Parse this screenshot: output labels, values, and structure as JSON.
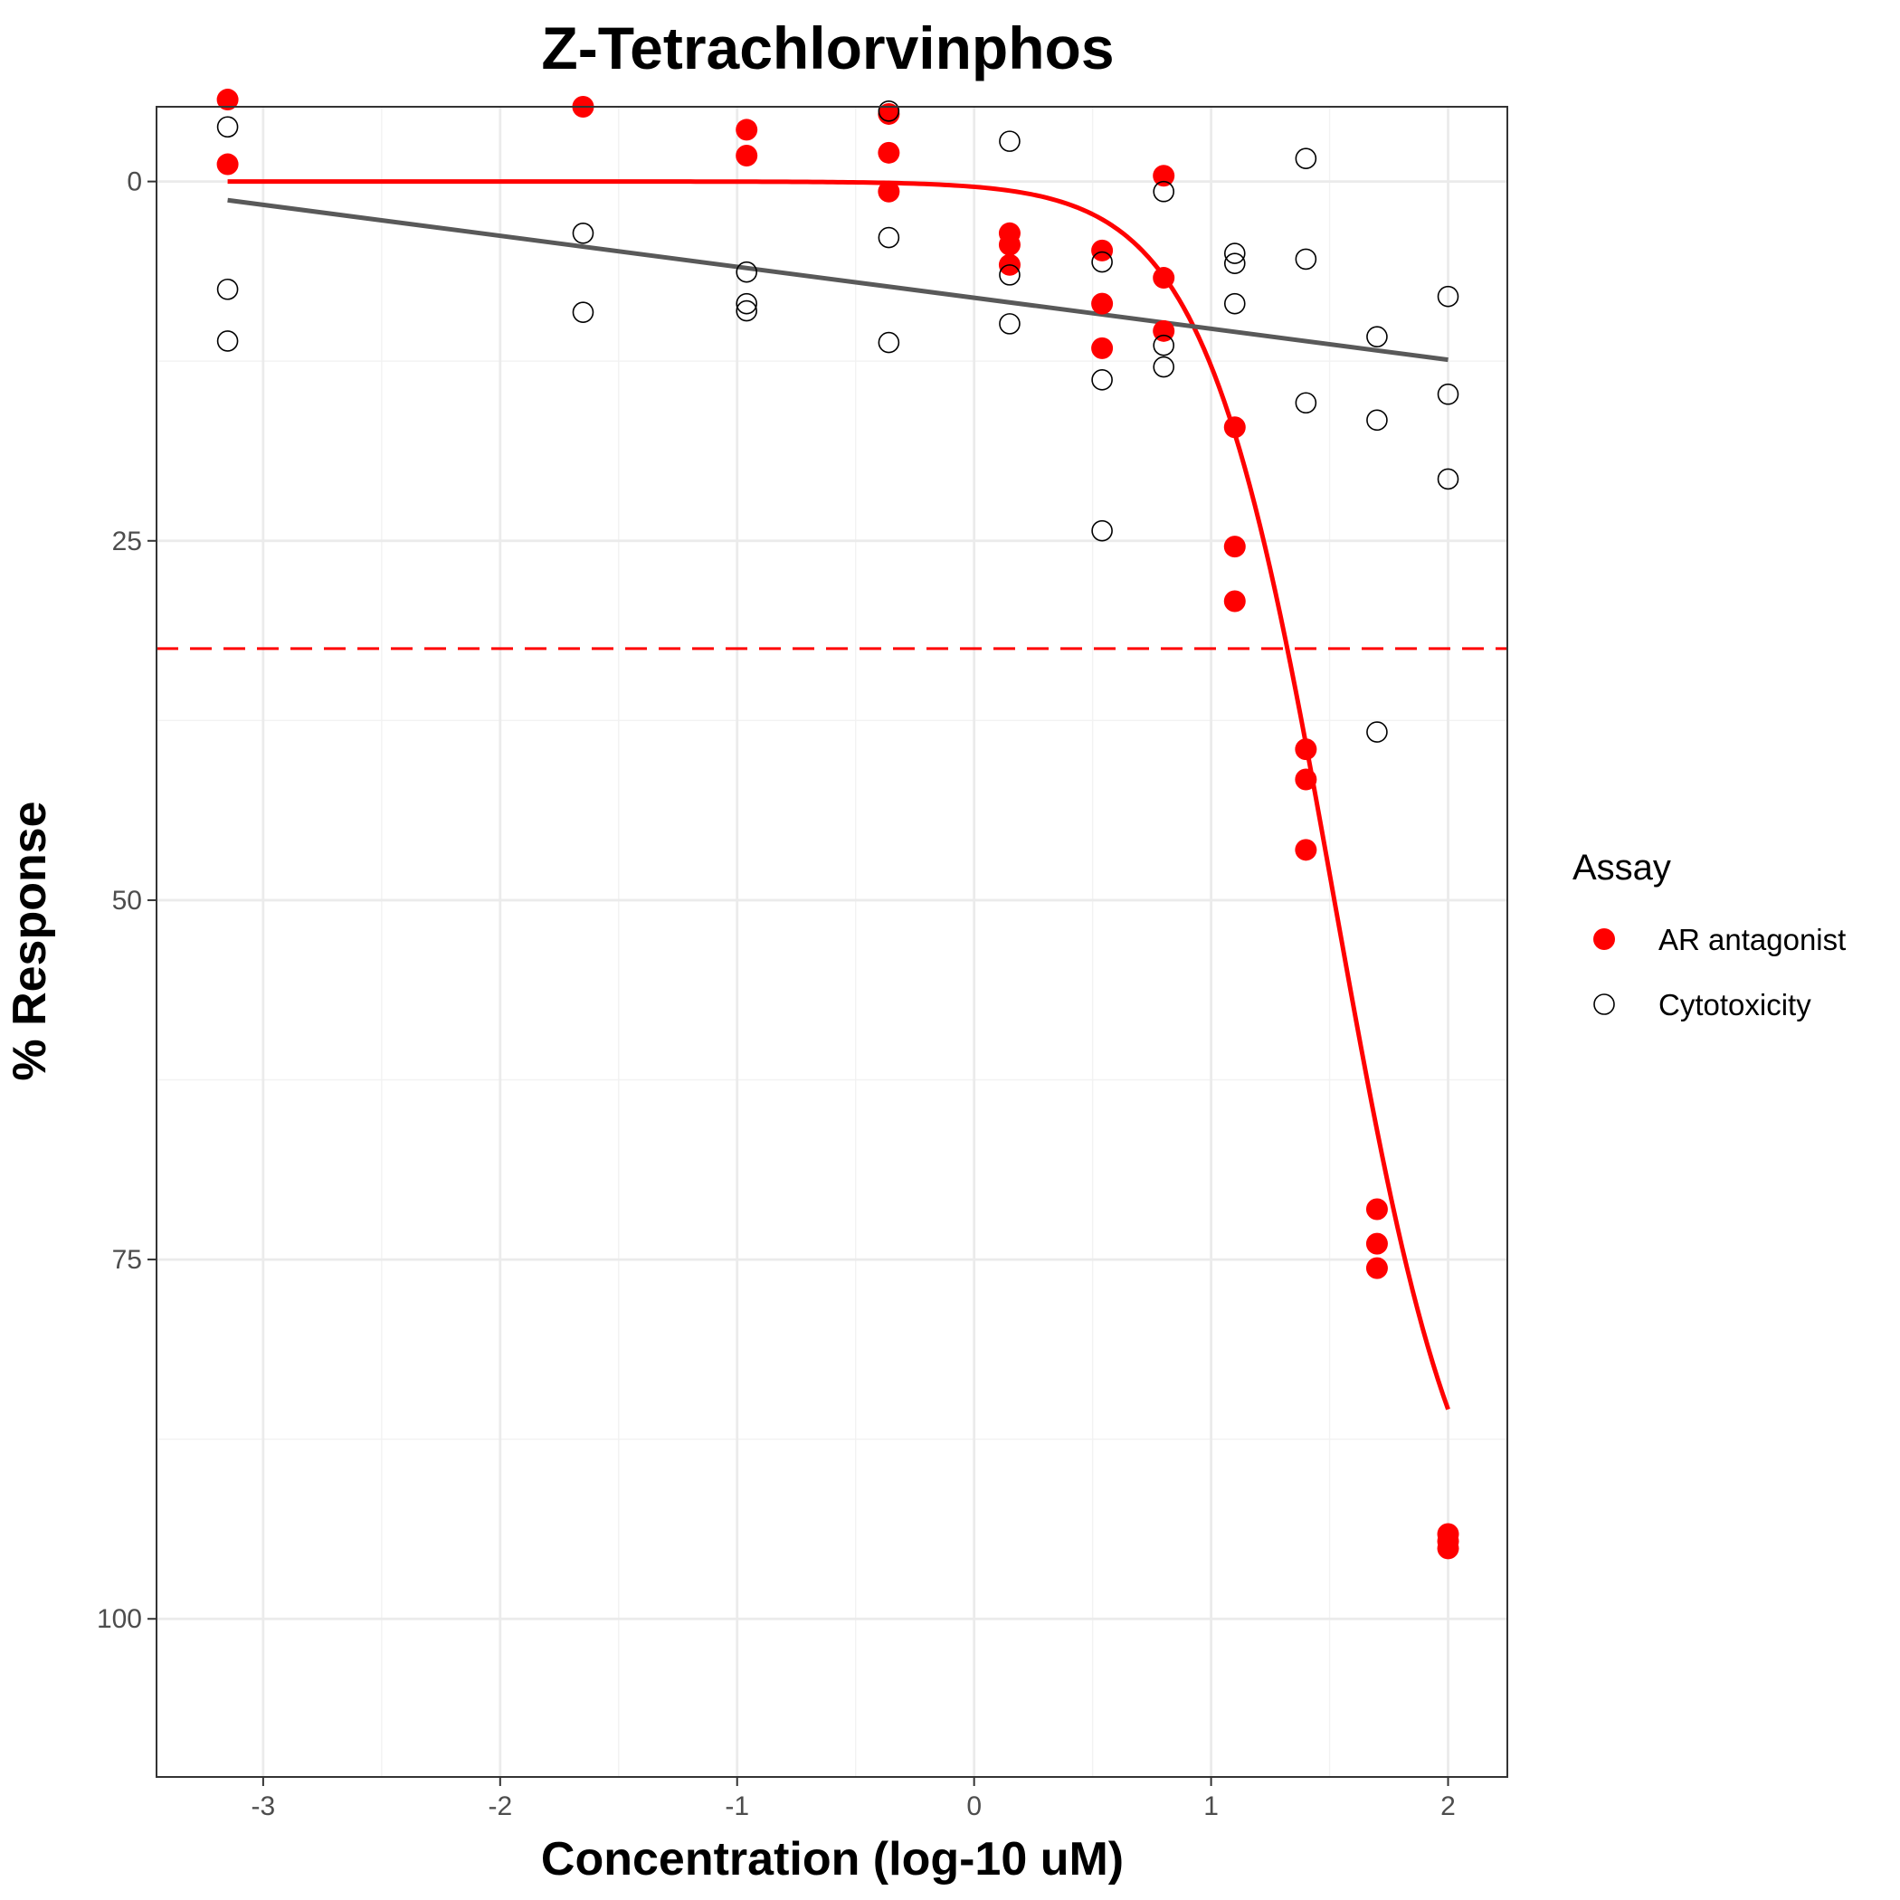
{
  "chart_data": {
    "type": "scatter",
    "title": "Z-Tetrachlorvinphos",
    "xlabel": "Concentration (log-10 uM)",
    "ylabel": "% Response",
    "xlim": [
      -3.45,
      2.25
    ],
    "ylim": [
      -5.2,
      111
    ],
    "y_reversed": true,
    "grid": true,
    "x_ticks": [
      -3,
      -2,
      -1,
      0,
      1,
      2
    ],
    "x_tick_labels": [
      "-3",
      "-2",
      "-1",
      "0",
      "1",
      "2"
    ],
    "y_ticks": [
      0,
      25,
      50,
      75,
      100
    ],
    "y_tick_labels": [
      "0",
      "25",
      "50",
      "75",
      "100"
    ],
    "legend": {
      "title": "Assay",
      "position": "right",
      "items": [
        {
          "label": "AR antagonist",
          "color": "#ff0000",
          "marker": "filled-circle"
        },
        {
          "label": "Cytotoxicity",
          "color": "#000000",
          "marker": "open-circle"
        }
      ]
    },
    "threshold_line": {
      "y": 32.5,
      "color": "#ff0000",
      "style": "dashed"
    },
    "series": [
      {
        "name": "AR antagonist",
        "color": "#ff0000",
        "marker": "filled",
        "points": [
          {
            "x": -3.15,
            "y": -5.7
          },
          {
            "x": -3.15,
            "y": -1.2
          },
          {
            "x": -1.65,
            "y": -5.2
          },
          {
            "x": -0.96,
            "y": -3.6
          },
          {
            "x": -0.96,
            "y": -1.8
          },
          {
            "x": -0.36,
            "y": -4.7
          },
          {
            "x": -0.36,
            "y": -2.0
          },
          {
            "x": -0.36,
            "y": 0.7
          },
          {
            "x": 0.15,
            "y": 3.6
          },
          {
            "x": 0.15,
            "y": 4.4
          },
          {
            "x": 0.15,
            "y": 5.8
          },
          {
            "x": 0.54,
            "y": 4.8
          },
          {
            "x": 0.54,
            "y": 8.5
          },
          {
            "x": 0.54,
            "y": 11.6
          },
          {
            "x": 0.8,
            "y": -0.4
          },
          {
            "x": 0.8,
            "y": 6.7
          },
          {
            "x": 0.8,
            "y": 10.4
          },
          {
            "x": 1.1,
            "y": 17.1
          },
          {
            "x": 1.1,
            "y": 25.4
          },
          {
            "x": 1.1,
            "y": 29.2
          },
          {
            "x": 1.4,
            "y": 39.5
          },
          {
            "x": 1.4,
            "y": 41.6
          },
          {
            "x": 1.4,
            "y": 46.5
          },
          {
            "x": 1.7,
            "y": 71.5
          },
          {
            "x": 1.7,
            "y": 73.9
          },
          {
            "x": 1.7,
            "y": 75.6
          },
          {
            "x": 2.0,
            "y": 94.1
          },
          {
            "x": 2.0,
            "y": 94.6
          },
          {
            "x": 2.0,
            "y": 95.1
          }
        ],
        "fit": {
          "type": "hill",
          "top": 0,
          "bottom": 100,
          "log_ac50": 1.52,
          "hill": 1.6,
          "x_range": [
            -3.15,
            2.0
          ]
        }
      },
      {
        "name": "Cytotoxicity",
        "color": "#000000",
        "marker": "open",
        "points": [
          {
            "x": -3.15,
            "y": -3.8
          },
          {
            "x": -3.15,
            "y": 7.5
          },
          {
            "x": -3.15,
            "y": 11.1
          },
          {
            "x": -1.65,
            "y": 3.6
          },
          {
            "x": -1.65,
            "y": 9.1
          },
          {
            "x": -0.96,
            "y": 6.3
          },
          {
            "x": -0.96,
            "y": 8.5
          },
          {
            "x": -0.96,
            "y": 9.0
          },
          {
            "x": -0.36,
            "y": -4.9
          },
          {
            "x": -0.36,
            "y": 3.9
          },
          {
            "x": -0.36,
            "y": 11.2
          },
          {
            "x": 0.15,
            "y": -2.8
          },
          {
            "x": 0.15,
            "y": 6.5
          },
          {
            "x": 0.15,
            "y": 9.9
          },
          {
            "x": 0.54,
            "y": 5.6
          },
          {
            "x": 0.54,
            "y": 13.8
          },
          {
            "x": 0.54,
            "y": 24.3
          },
          {
            "x": 0.8,
            "y": 0.7
          },
          {
            "x": 0.8,
            "y": 11.4
          },
          {
            "x": 0.8,
            "y": 12.9
          },
          {
            "x": 1.1,
            "y": 5.0
          },
          {
            "x": 1.1,
            "y": 5.7
          },
          {
            "x": 1.1,
            "y": 8.5
          },
          {
            "x": 1.4,
            "y": -1.6
          },
          {
            "x": 1.4,
            "y": 5.4
          },
          {
            "x": 1.4,
            "y": 15.4
          },
          {
            "x": 1.7,
            "y": 10.8
          },
          {
            "x": 1.7,
            "y": 16.6
          },
          {
            "x": 1.7,
            "y": 38.3
          },
          {
            "x": 2.0,
            "y": 8.0
          },
          {
            "x": 2.0,
            "y": 14.8
          },
          {
            "x": 2.0,
            "y": 20.7
          }
        ],
        "fit": {
          "type": "linear",
          "points": [
            {
              "x": -3.15,
              "y": 1.3
            },
            {
              "x": 2.0,
              "y": 12.4
            }
          ]
        }
      }
    ]
  }
}
